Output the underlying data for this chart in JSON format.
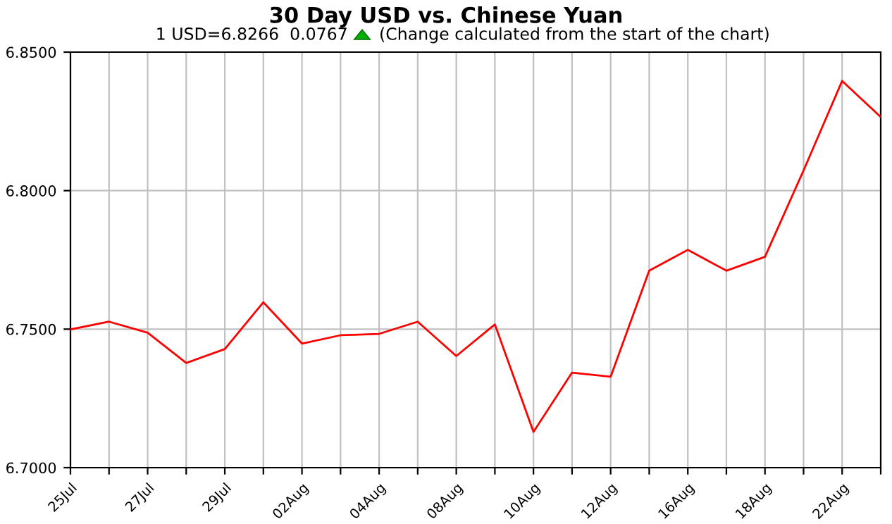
{
  "chart_data": {
    "type": "line",
    "title": "30 Day USD vs. Chinese Yuan",
    "subtitle": "1 USD=6.8266  0.0767",
    "annotations": [
      "(Change calculated from the start of the chart)"
    ],
    "categories": [
      "25Jul",
      null,
      "27Jul",
      null,
      "29Jul",
      null,
      "02Aug",
      null,
      "04Aug",
      null,
      "08Aug",
      null,
      "10Aug",
      null,
      "12Aug",
      null,
      "16Aug",
      null,
      "18Aug",
      null,
      "22Aug",
      null
    ],
    "series": [
      {
        "color": "#ff0000",
        "values": [
          6.7499,
          6.7527,
          6.7487,
          6.7378,
          6.7428,
          6.7597,
          6.7448,
          6.7478,
          6.7483,
          6.7527,
          6.7403,
          6.7517,
          6.7129,
          6.7343,
          6.7328,
          6.7711,
          6.7786,
          6.7711,
          6.7761,
          6.8073,
          6.8396,
          6.8266
        ]
      }
    ],
    "ylim": [
      6.7,
      6.85
    ],
    "yticks": [
      {
        "value": 6.7,
        "label": "6.7000"
      },
      {
        "value": 6.75,
        "label": "6.7500"
      },
      {
        "value": 6.8,
        "label": "6.8000"
      },
      {
        "value": 6.85,
        "label": "6.8500"
      }
    ],
    "grid": true,
    "legend": false,
    "marker": "none",
    "line_style": "solid"
  }
}
